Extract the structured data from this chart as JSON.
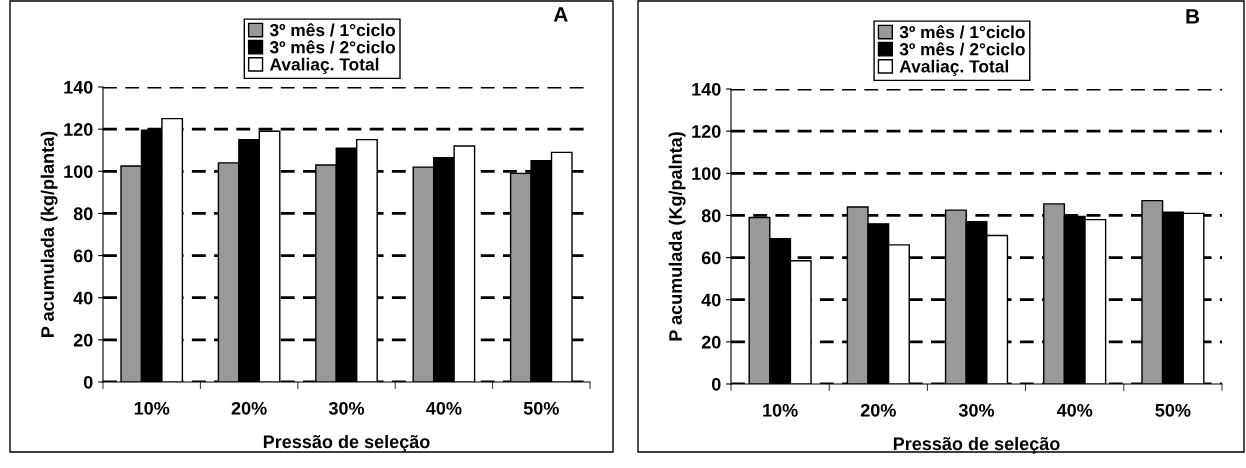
{
  "chart_data": [
    {
      "type": "bar",
      "annotations": [
        "A"
      ],
      "xlabel": "Pressão de seleção",
      "ylabel": "P acumulada (kg/planta)",
      "categories": [
        "10%",
        "20%",
        "30%",
        "40%",
        "50%"
      ],
      "series": [
        {
          "name": "3º mês / 1°ciclo",
          "color": "#999999",
          "values": [
            102.5,
            104,
            103,
            102,
            99
          ]
        },
        {
          "name": "3º mês / 2°ciclo",
          "color": "#000000",
          "values": [
            119.5,
            115,
            111,
            106.5,
            105
          ]
        },
        {
          "name": "Avaliaç. Total",
          "color": "#ffffff",
          "values": [
            125,
            119,
            115,
            112,
            109
          ]
        }
      ],
      "ylim": [
        0,
        140
      ],
      "yticks": [
        0,
        20,
        40,
        60,
        80,
        100,
        120,
        140
      ],
      "grid": "y",
      "legend": "top"
    },
    {
      "type": "bar",
      "annotations": [
        "B"
      ],
      "xlabel": "Pressão de seleção",
      "ylabel": "P acumulada (Kg/palnta)",
      "categories": [
        "10%",
        "20%",
        "30%",
        "40%",
        "50%"
      ],
      "series": [
        {
          "name": "3º mês / 1°ciclo",
          "color": "#999999",
          "values": [
            79,
            84,
            82.5,
            85.5,
            87
          ]
        },
        {
          "name": "3º mês / 2°ciclo",
          "color": "#000000",
          "values": [
            69,
            76,
            77,
            79.5,
            81.5
          ]
        },
        {
          "name": "Avaliaç. Total",
          "color": "#ffffff",
          "values": [
            58.5,
            66,
            70.5,
            78,
            81
          ]
        }
      ],
      "ylim": [
        0,
        140
      ],
      "yticks": [
        0,
        20,
        40,
        60,
        80,
        100,
        120,
        140
      ],
      "grid": "y",
      "legend": "top"
    }
  ]
}
